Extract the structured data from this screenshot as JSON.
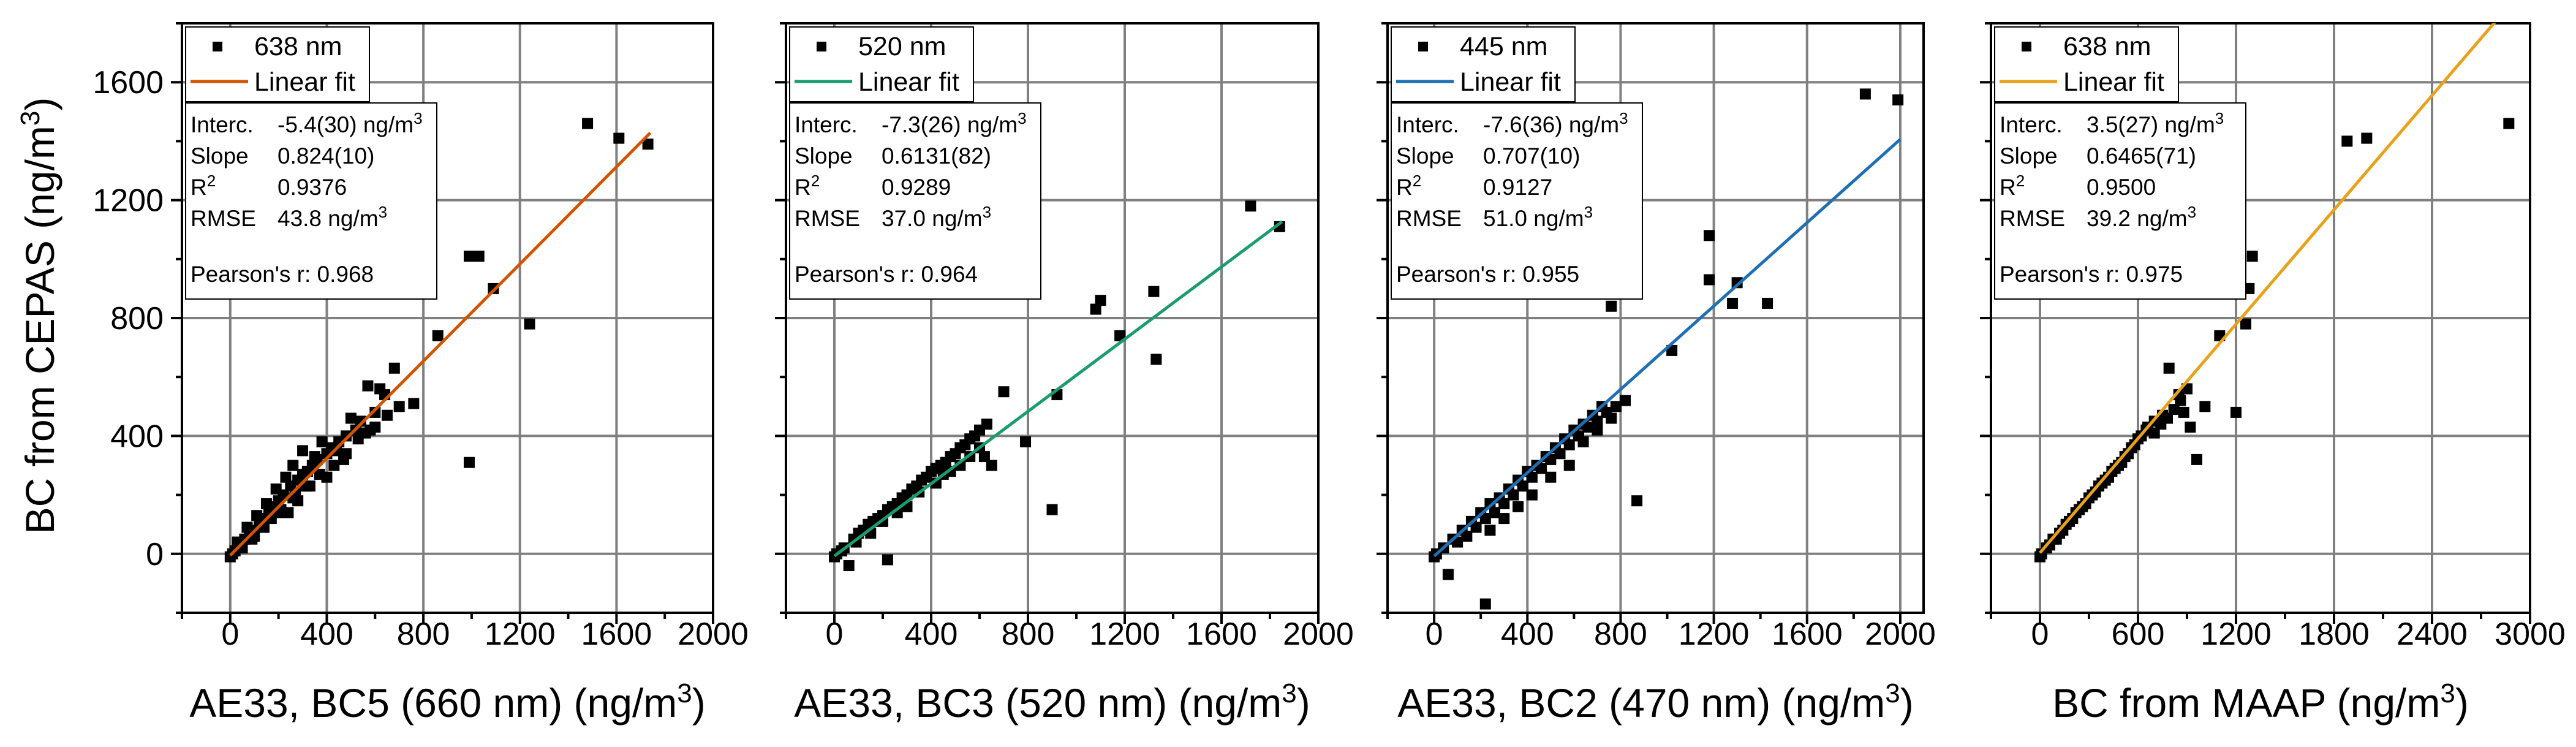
{
  "figure": {
    "ylabel_text": "BC from CEPAS (ng/m",
    "ylabel_sup": "3",
    "ylabel_close": ")"
  },
  "chart_data": [
    {
      "type": "scatter",
      "xlabel": "AE33, BC5 (660 nm) (ng/m",
      "xlabel_sup": "3",
      "xlabel_close": ")",
      "ylabel": "BC from CEPAS (ng/m³)",
      "xlim": [
        -200,
        2000
      ],
      "ylim": [
        -200,
        1800
      ],
      "xticks": [
        0,
        400,
        800,
        1200,
        1600,
        2000
      ],
      "yticks": [
        0,
        400,
        800,
        1200,
        1600
      ],
      "grid": true,
      "legend": {
        "marker": "638 nm",
        "fit": "Linear fit",
        "position": "top-left"
      },
      "fit_color": "#d35400",
      "fit": {
        "intercept": -5.4,
        "slope": 0.824,
        "x_range": [
          0,
          1740
        ]
      },
      "stats": {
        "interc_label": "Interc.",
        "interc_value": "-5.4(30) ng/m",
        "slope_label": "Slope",
        "slope_value": "0.824(10)",
        "r2_label": "R",
        "r2_value": "0.9376",
        "rmse_label": "RMSE",
        "rmse_value": "43.8 ng/m",
        "pearson": "Pearson's r: 0.968"
      },
      "points": [
        [
          1480,
          1460
        ],
        [
          1610,
          1410
        ],
        [
          1730,
          1390
        ],
        [
          990,
          1010
        ],
        [
          1030,
          1010
        ],
        [
          1090,
          900
        ],
        [
          1240,
          780
        ],
        [
          860,
          740
        ],
        [
          990,
          310
        ],
        [
          680,
          630
        ],
        [
          760,
          510
        ],
        [
          620,
          560
        ],
        [
          570,
          570
        ],
        [
          640,
          540
        ],
        [
          600,
          480
        ],
        [
          700,
          500
        ],
        [
          540,
          450
        ],
        [
          520,
          420
        ],
        [
          480,
          400
        ],
        [
          450,
          380
        ],
        [
          420,
          360
        ],
        [
          400,
          340
        ],
        [
          360,
          320
        ],
        [
          340,
          300
        ],
        [
          300,
          270
        ],
        [
          280,
          250
        ],
        [
          250,
          230
        ],
        [
          220,
          200
        ],
        [
          200,
          180
        ],
        [
          180,
          160
        ],
        [
          160,
          140
        ],
        [
          140,
          120
        ],
        [
          120,
          100
        ],
        [
          100,
          80
        ],
        [
          80,
          60
        ],
        [
          60,
          50
        ],
        [
          40,
          30
        ],
        [
          20,
          10
        ],
        [
          10,
          0
        ],
        [
          0,
          -10
        ],
        [
          50,
          20
        ],
        [
          90,
          50
        ],
        [
          130,
          90
        ],
        [
          170,
          120
        ],
        [
          210,
          150
        ],
        [
          260,
          190
        ],
        [
          310,
          230
        ],
        [
          370,
          270
        ],
        [
          430,
          300
        ],
        [
          480,
          340
        ],
        [
          530,
          390
        ],
        [
          560,
          410
        ],
        [
          600,
          430
        ],
        [
          470,
          320
        ],
        [
          350,
          330
        ],
        [
          300,
          350
        ],
        [
          260,
          300
        ],
        [
          230,
          260
        ],
        [
          190,
          220
        ],
        [
          150,
          170
        ],
        [
          110,
          130
        ],
        [
          70,
          90
        ],
        [
          30,
          40
        ],
        [
          240,
          140
        ],
        [
          280,
          180
        ],
        [
          330,
          230
        ],
        [
          400,
          260
        ],
        [
          440,
          350
        ],
        [
          500,
          460
        ],
        [
          580,
          420
        ],
        [
          650,
          470
        ],
        [
          380,
          380
        ],
        [
          320,
          280
        ],
        [
          270,
          210
        ],
        [
          200,
          140
        ],
        [
          140,
          90
        ],
        [
          100,
          60
        ]
      ]
    },
    {
      "type": "scatter",
      "xlabel": "AE33, BC3 (520 nm) (ng/m",
      "xlabel_sup": "3",
      "xlabel_close": ")",
      "ylabel": "BC from CEPAS (ng/m³)",
      "xlim": [
        -200,
        2000
      ],
      "ylim": [
        -200,
        1800
      ],
      "xticks": [
        0,
        400,
        800,
        1200,
        1600,
        2000
      ],
      "yticks": [
        0,
        400,
        800,
        1200,
        1600
      ],
      "grid": true,
      "legend": {
        "marker": "520 nm",
        "fit": "Linear fit",
        "position": "top-left"
      },
      "fit_color": "#1a9c6e",
      "fit": {
        "intercept": -7.3,
        "slope": 0.6131,
        "x_range": [
          0,
          1850
        ]
      },
      "stats": {
        "interc_label": "Interc.",
        "interc_value": "-7.3(26) ng/m",
        "slope_label": "Slope",
        "slope_value": "0.6131(82)",
        "r2_label": "R",
        "r2_value": "0.9289",
        "rmse_label": "RMSE",
        "rmse_value": "37.0 ng/m",
        "pearson": "Pearson's r: 0.964"
      },
      "points": [
        [
          1720,
          1180
        ],
        [
          1840,
          1110
        ],
        [
          1100,
          860
        ],
        [
          1080,
          830
        ],
        [
          1180,
          740
        ],
        [
          1320,
          890
        ],
        [
          1330,
          660
        ],
        [
          920,
          540
        ],
        [
          900,
          150
        ],
        [
          790,
          380
        ],
        [
          700,
          550
        ],
        [
          630,
          440
        ],
        [
          600,
          420
        ],
        [
          560,
          390
        ],
        [
          520,
          360
        ],
        [
          480,
          330
        ],
        [
          440,
          300
        ],
        [
          400,
          280
        ],
        [
          360,
          250
        ],
        [
          320,
          220
        ],
        [
          280,
          190
        ],
        [
          240,
          160
        ],
        [
          200,
          130
        ],
        [
          160,
          110
        ],
        [
          120,
          80
        ],
        [
          80,
          50
        ],
        [
          40,
          20
        ],
        [
          10,
          0
        ],
        [
          0,
          -10
        ],
        [
          60,
          -40
        ],
        [
          220,
          -20
        ],
        [
          100,
          70
        ],
        [
          140,
          100
        ],
        [
          180,
          120
        ],
        [
          220,
          150
        ],
        [
          260,
          170
        ],
        [
          300,
          200
        ],
        [
          340,
          230
        ],
        [
          380,
          260
        ],
        [
          420,
          290
        ],
        [
          460,
          310
        ],
        [
          500,
          340
        ],
        [
          540,
          370
        ],
        [
          580,
          400
        ],
        [
          620,
          330
        ],
        [
          650,
          300
        ],
        [
          300,
          160
        ],
        [
          260,
          140
        ],
        [
          350,
          210
        ],
        [
          450,
          270
        ],
        [
          520,
          300
        ],
        [
          560,
          330
        ],
        [
          600,
          360
        ],
        [
          200,
          110
        ],
        [
          150,
          70
        ],
        [
          90,
          40
        ],
        [
          30,
          10
        ],
        [
          420,
          240
        ],
        [
          480,
          280
        ]
      ]
    },
    {
      "type": "scatter",
      "xlabel": "AE33, BC2 (470 nm) (ng/m",
      "xlabel_sup": "3",
      "xlabel_close": ")",
      "ylabel": "BC from CEPAS (ng/m³)",
      "xlim": [
        -200,
        2100
      ],
      "ylim": [
        -200,
        1800
      ],
      "xticks": [
        0,
        400,
        800,
        1200,
        1600,
        2000
      ],
      "yticks": [
        0,
        400,
        800,
        1200,
        1600
      ],
      "grid": true,
      "legend": {
        "marker": "445 nm",
        "fit": "Linear fit",
        "position": "top-left"
      },
      "fit_color": "#1f6fb4",
      "fit": {
        "intercept": -7.6,
        "slope": 0.707,
        "x_range": [
          0,
          2000
        ]
      },
      "stats": {
        "interc_label": "Interc.",
        "interc_value": "-7.6(36) ng/m",
        "slope_label": "Slope",
        "slope_value": "0.707(10)",
        "r2_label": "R",
        "r2_value": "0.9127",
        "rmse_label": "RMSE",
        "rmse_value": "51.0 ng/m",
        "pearson": "Pearson's r: 0.955"
      },
      "points": [
        [
          1850,
          1560
        ],
        [
          1990,
          1540
        ],
        [
          1180,
          1080
        ],
        [
          1180,
          930
        ],
        [
          1300,
          920
        ],
        [
          1280,
          850
        ],
        [
          1430,
          850
        ],
        [
          1020,
          690
        ],
        [
          760,
          840
        ],
        [
          870,
          180
        ],
        [
          220,
          -170
        ],
        [
          60,
          -70
        ],
        [
          820,
          520
        ],
        [
          780,
          500
        ],
        [
          760,
          460
        ],
        [
          720,
          500
        ],
        [
          680,
          470
        ],
        [
          640,
          440
        ],
        [
          600,
          420
        ],
        [
          560,
          390
        ],
        [
          520,
          360
        ],
        [
          480,
          330
        ],
        [
          440,
          300
        ],
        [
          400,
          280
        ],
        [
          360,
          250
        ],
        [
          320,
          220
        ],
        [
          280,
          190
        ],
        [
          240,
          170
        ],
        [
          200,
          140
        ],
        [
          160,
          110
        ],
        [
          120,
          80
        ],
        [
          80,
          50
        ],
        [
          40,
          20
        ],
        [
          10,
          0
        ],
        [
          0,
          -10
        ],
        [
          100,
          40
        ],
        [
          140,
          60
        ],
        [
          180,
          90
        ],
        [
          220,
          120
        ],
        [
          260,
          140
        ],
        [
          300,
          170
        ],
        [
          340,
          200
        ],
        [
          380,
          230
        ],
        [
          420,
          260
        ],
        [
          460,
          290
        ],
        [
          500,
          320
        ],
        [
          540,
          340
        ],
        [
          580,
          370
        ],
        [
          620,
          400
        ],
        [
          660,
          430
        ],
        [
          700,
          450
        ],
        [
          740,
          480
        ],
        [
          580,
          300
        ],
        [
          500,
          260
        ],
        [
          420,
          200
        ],
        [
          360,
          160
        ],
        [
          300,
          120
        ],
        [
          240,
          80
        ],
        [
          640,
          380
        ],
        [
          700,
          420
        ]
      ]
    },
    {
      "type": "scatter",
      "xlabel": "BC from MAAP (ng/m",
      "xlabel_sup": "3",
      "xlabel_close": ")",
      "ylabel": "BC from CEPAS (ng/m³)",
      "xlim": [
        -300,
        3000
      ],
      "ylim": [
        -200,
        1800
      ],
      "xticks": [
        0,
        600,
        1200,
        1800,
        2400,
        3000
      ],
      "yticks": [
        0,
        400,
        800,
        1200,
        1600
      ],
      "grid": true,
      "legend": {
        "marker": "638 nm",
        "fit": "Linear fit",
        "position": "top-left"
      },
      "fit_color": "#e8a21a",
      "fit": {
        "intercept": 3.5,
        "slope": 0.6465,
        "x_range": [
          0,
          3000
        ]
      },
      "stats": {
        "interc_label": "Interc.",
        "interc_value": "3.5(27) ng/m",
        "slope_label": "Slope",
        "slope_value": "0.6465(71)",
        "r2_label": "R",
        "r2_value": "0.9500",
        "rmse_label": "RMSE",
        "rmse_value": "39.2 ng/m",
        "pearson": "Pearson's r: 0.975"
      },
      "points": [
        [
          1880,
          1400
        ],
        [
          2000,
          1410
        ],
        [
          2870,
          1460
        ],
        [
          1230,
          1010
        ],
        [
          1300,
          1010
        ],
        [
          1280,
          900
        ],
        [
          1260,
          780
        ],
        [
          1100,
          740
        ],
        [
          1200,
          480
        ],
        [
          960,
          320
        ],
        [
          1010,
          500
        ],
        [
          790,
          630
        ],
        [
          850,
          540
        ],
        [
          820,
          490
        ],
        [
          750,
          470
        ],
        [
          700,
          450
        ],
        [
          650,
          420
        ],
        [
          600,
          390
        ],
        [
          560,
          360
        ],
        [
          520,
          330
        ],
        [
          480,
          300
        ],
        [
          440,
          280
        ],
        [
          400,
          250
        ],
        [
          360,
          230
        ],
        [
          320,
          200
        ],
        [
          280,
          170
        ],
        [
          240,
          150
        ],
        [
          200,
          120
        ],
        [
          160,
          100
        ],
        [
          120,
          70
        ],
        [
          80,
          50
        ],
        [
          40,
          20
        ],
        [
          10,
          0
        ],
        [
          0,
          -10
        ],
        [
          60,
          30
        ],
        [
          100,
          50
        ],
        [
          140,
          80
        ],
        [
          180,
          110
        ],
        [
          220,
          140
        ],
        [
          260,
          160
        ],
        [
          300,
          190
        ],
        [
          340,
          210
        ],
        [
          380,
          240
        ],
        [
          420,
          260
        ],
        [
          460,
          290
        ],
        [
          500,
          310
        ],
        [
          540,
          340
        ],
        [
          580,
          370
        ],
        [
          620,
          400
        ],
        [
          660,
          430
        ],
        [
          700,
          410
        ],
        [
          740,
          440
        ],
        [
          780,
          460
        ],
        [
          860,
          520
        ],
        [
          900,
          560
        ],
        [
          920,
          430
        ],
        [
          880,
          480
        ]
      ]
    }
  ]
}
